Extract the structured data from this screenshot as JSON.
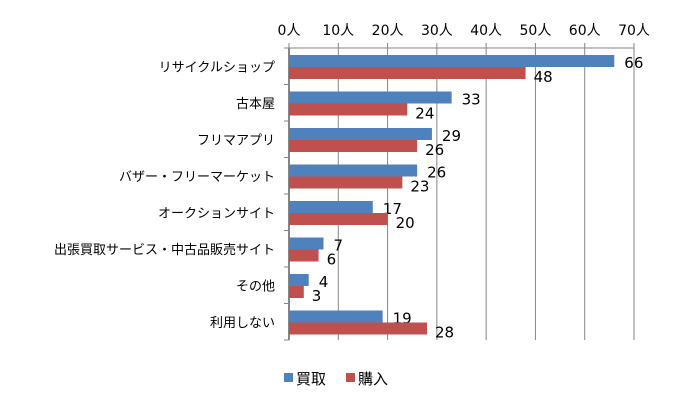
{
  "chart_data": {
    "type": "bar",
    "orientation": "horizontal",
    "categories": [
      "リサイクルショップ",
      "古本屋",
      "フリマアプリ",
      "バザー・フリーマーケット",
      "オークションサイト",
      "出張買取サービス・中古品販売サイト",
      "その他",
      "利用しない"
    ],
    "series": [
      {
        "name": "買取",
        "color": "#4f81bd",
        "values": [
          66,
          33,
          29,
          26,
          17,
          7,
          4,
          19
        ]
      },
      {
        "name": "購入",
        "color": "#c0504d",
        "values": [
          48,
          24,
          26,
          23,
          20,
          6,
          3,
          28
        ]
      }
    ],
    "xlim": [
      0,
      70
    ],
    "xticks": [
      0,
      10,
      20,
      30,
      40,
      50,
      60,
      70
    ],
    "tick_suffix": "人",
    "tick_labels": [
      "0人",
      "10人",
      "20人",
      "30人",
      "40人",
      "50人",
      "60人",
      "70人"
    ],
    "axis_position": "top",
    "grid": true,
    "legend": "bottom",
    "title": "",
    "xlabel": "",
    "ylabel": ""
  }
}
